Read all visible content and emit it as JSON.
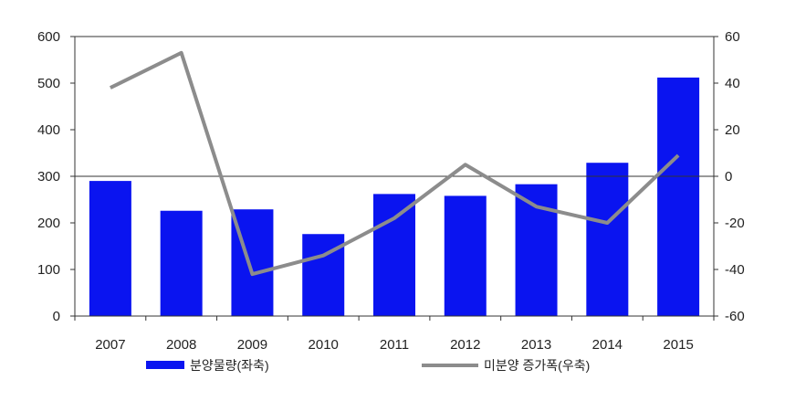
{
  "chart_data": {
    "type": "bar",
    "categories": [
      "2007",
      "2008",
      "2009",
      "2010",
      "2011",
      "2012",
      "2013",
      "2014",
      "2015"
    ],
    "series": [
      {
        "name": "분양물량(좌축)",
        "type": "bar",
        "axis": "left",
        "values": [
          290,
          226,
          229,
          176,
          262,
          258,
          283,
          329,
          512
        ]
      },
      {
        "name": "미분양 증가폭(우축)",
        "type": "line",
        "axis": "right",
        "values": [
          38,
          53,
          -42,
          -34,
          -18,
          5,
          -13,
          -20,
          9
        ]
      }
    ],
    "y_left": {
      "lim": [
        0,
        600
      ],
      "ticks": [
        "0",
        "100",
        "200",
        "300",
        "400",
        "500",
        "600"
      ]
    },
    "y_right": {
      "lim": [
        -60,
        60
      ],
      "ticks": [
        "-60",
        "-40",
        "-20",
        "0",
        "20",
        "40",
        "60"
      ]
    },
    "grid": false,
    "zero_line_right": true,
    "legend": {
      "placement": "bottom"
    },
    "colors": {
      "bar": "#0a14f0",
      "line": "#8c8c8c",
      "axis": "#333333"
    }
  }
}
